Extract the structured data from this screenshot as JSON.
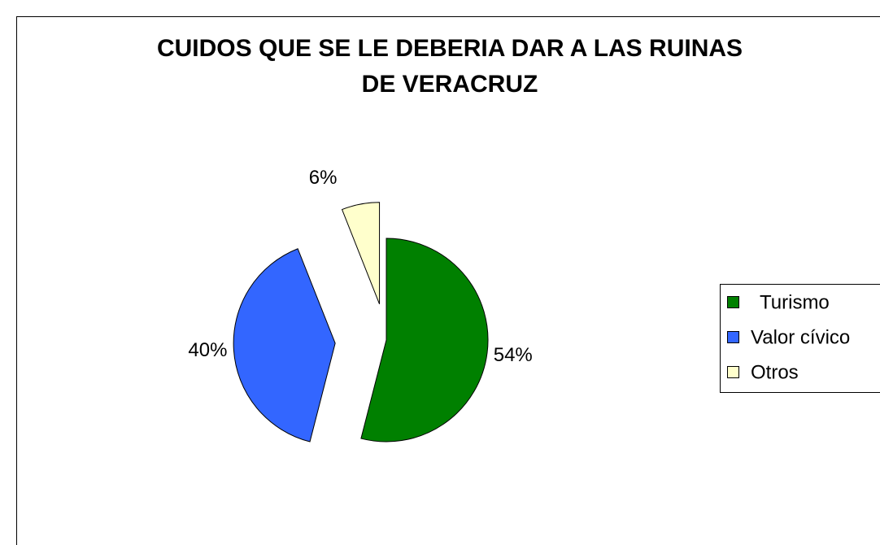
{
  "chart_data": {
    "type": "pie",
    "title": "CUIDOS QUE SE LE DEBERIA DAR A LAS RUINAS DE VERACRUZ",
    "categories": [
      "Turismo",
      "Valor cívico",
      "Otros"
    ],
    "values": [
      54,
      40,
      6
    ],
    "value_labels": [
      "54%",
      "40%",
      "6%"
    ],
    "colors": [
      "#008000",
      "#3366ff",
      "#ffffcc"
    ],
    "legend": "right"
  }
}
